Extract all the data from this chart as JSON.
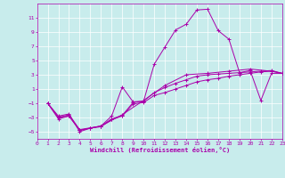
{
  "xlabel": "Windchill (Refroidissement éolien,°C)",
  "background_color": "#c8ecec",
  "grid_color": "#ffffff",
  "line_color": "#aa00aa",
  "xlim": [
    0,
    23
  ],
  "ylim": [
    -6,
    13
  ],
  "xticks": [
    0,
    1,
    2,
    3,
    4,
    5,
    6,
    7,
    8,
    9,
    10,
    11,
    12,
    13,
    14,
    15,
    16,
    17,
    18,
    19,
    20,
    21,
    22,
    23
  ],
  "yticks": [
    -5,
    -3,
    -1,
    1,
    3,
    5,
    7,
    9,
    11
  ],
  "series": [
    {
      "x": [
        1,
        2,
        3,
        4,
        5,
        6,
        7,
        8,
        9,
        10,
        11,
        12,
        13,
        14,
        15,
        16,
        17,
        18,
        19,
        20,
        21,
        22,
        23
      ],
      "y": [
        -1,
        -2.8,
        -2.5,
        -5.0,
        -4.5,
        -4.2,
        -2.8,
        1.3,
        -0.8,
        -0.7,
        4.5,
        6.9,
        9.3,
        10.1,
        12.1,
        12.2,
        9.2,
        8.0,
        3.3,
        3.6,
        -0.6,
        3.2,
        3.2
      ]
    },
    {
      "x": [
        1,
        2,
        3,
        4,
        5,
        6,
        7,
        8,
        9,
        10,
        11,
        12,
        13,
        14,
        15,
        16,
        17,
        18,
        19,
        20,
        21,
        22,
        23
      ],
      "y": [
        -1,
        -3,
        -2.8,
        -4.8,
        -4.5,
        -4.2,
        -3.2,
        -2.7,
        -0.9,
        -0.7,
        0.5,
        1.2,
        1.8,
        2.3,
        2.8,
        3.0,
        3.1,
        3.2,
        3.3,
        3.4,
        3.5,
        3.6,
        3.2
      ]
    },
    {
      "x": [
        1,
        2,
        3,
        4,
        5,
        6,
        7,
        8,
        9,
        10,
        11,
        12,
        13,
        14,
        15,
        16,
        17,
        18,
        19,
        20,
        21,
        22,
        23
      ],
      "y": [
        -1,
        -3.2,
        -2.8,
        -4.8,
        -4.5,
        -4.3,
        -3.3,
        -2.8,
        -1.1,
        -0.9,
        0.1,
        0.5,
        1.0,
        1.5,
        2.0,
        2.3,
        2.5,
        2.8,
        3.0,
        3.2,
        3.4,
        3.5,
        3.2
      ]
    },
    {
      "x": [
        1,
        2,
        3,
        4,
        6,
        8,
        10,
        12,
        14,
        16,
        18,
        20,
        22,
        23
      ],
      "y": [
        -1,
        -3.0,
        -2.6,
        -4.7,
        -4.2,
        -2.6,
        -0.6,
        1.5,
        3.0,
        3.2,
        3.5,
        3.8,
        3.5,
        3.2
      ]
    }
  ]
}
